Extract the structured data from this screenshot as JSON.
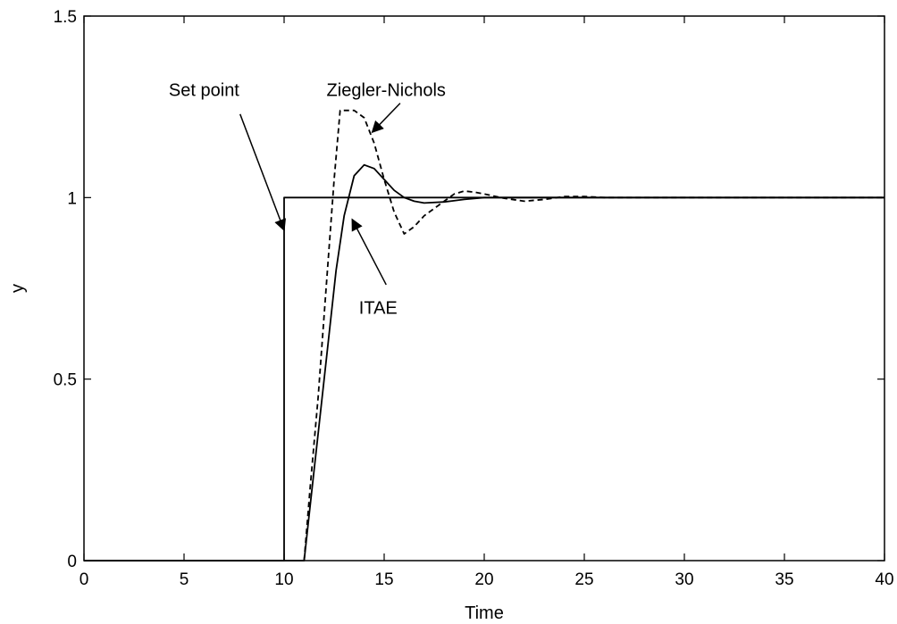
{
  "chart_data": {
    "type": "line",
    "title": "",
    "xlabel": "Time",
    "ylabel": "y",
    "xlim": [
      0,
      40
    ],
    "ylim": [
      0,
      1.5
    ],
    "xticks": [
      0,
      5,
      10,
      15,
      20,
      25,
      30,
      35,
      40
    ],
    "yticks": [
      0,
      0.5,
      1,
      1.5
    ],
    "xtick_labels": [
      "0",
      "5",
      "10",
      "15",
      "20",
      "25",
      "30",
      "35",
      "40"
    ],
    "ytick_labels": [
      "0",
      "0.5",
      "1",
      "1.5"
    ],
    "grid": false,
    "legend": "none",
    "series": [
      {
        "key": "setpoint",
        "style": "solid",
        "color": "#000000",
        "points": [
          [
            0,
            0
          ],
          [
            10,
            0
          ],
          [
            10,
            1
          ],
          [
            40,
            1
          ]
        ]
      },
      {
        "key": "itae",
        "style": "solid",
        "color": "#000000",
        "points": [
          [
            0,
            0
          ],
          [
            11,
            0
          ],
          [
            11.3,
            0.15
          ],
          [
            11.7,
            0.35
          ],
          [
            12.2,
            0.6
          ],
          [
            12.6,
            0.8
          ],
          [
            13,
            0.95
          ],
          [
            13.5,
            1.06
          ],
          [
            14,
            1.09
          ],
          [
            14.5,
            1.08
          ],
          [
            15,
            1.05
          ],
          [
            15.5,
            1.02
          ],
          [
            16,
            1.0
          ],
          [
            16.5,
            0.99
          ],
          [
            17,
            0.985
          ],
          [
            18,
            0.988
          ],
          [
            19,
            0.995
          ],
          [
            20,
            1.0
          ],
          [
            25,
            1.0
          ],
          [
            40,
            1.0
          ]
        ]
      },
      {
        "key": "ziegler_nichols",
        "style": "dashed",
        "color": "#000000",
        "points": [
          [
            11,
            0
          ],
          [
            11.3,
            0.2
          ],
          [
            11.7,
            0.45
          ],
          [
            12.1,
            0.75
          ],
          [
            12.5,
            1.05
          ],
          [
            12.8,
            1.24
          ],
          [
            13.5,
            1.24
          ],
          [
            14,
            1.22
          ],
          [
            14.5,
            1.15
          ],
          [
            15,
            1.05
          ],
          [
            15.5,
            0.96
          ],
          [
            16,
            0.9
          ],
          [
            16.5,
            0.92
          ],
          [
            17,
            0.95
          ],
          [
            17.5,
            0.97
          ],
          [
            18,
            0.99
          ],
          [
            18.5,
            1.01
          ],
          [
            19,
            1.018
          ],
          [
            19.5,
            1.015
          ],
          [
            20,
            1.01
          ],
          [
            21,
            0.998
          ],
          [
            22,
            0.99
          ],
          [
            23,
            0.995
          ],
          [
            24,
            1.003
          ],
          [
            25,
            1.003
          ],
          [
            26,
            1.0
          ],
          [
            40,
            1.0
          ]
        ]
      }
    ],
    "annotations": [
      {
        "key": "setpoint",
        "text": "Set point",
        "text_at": [
          6,
          1.28
        ],
        "arrow_from": [
          7.8,
          1.23
        ],
        "arrow_to": [
          10.0,
          0.91
        ]
      },
      {
        "key": "ziegler_nichols",
        "text": "Ziegler-Nichols",
        "text_at": [
          15.1,
          1.28
        ],
        "arrow_from": [
          15.8,
          1.26
        ],
        "arrow_to": [
          14.4,
          1.18
        ]
      },
      {
        "key": "itae",
        "text": "ITAE",
        "text_at": [
          14.7,
          0.68
        ],
        "arrow_from": [
          15.1,
          0.76
        ],
        "arrow_to": [
          13.4,
          0.94
        ]
      }
    ]
  }
}
